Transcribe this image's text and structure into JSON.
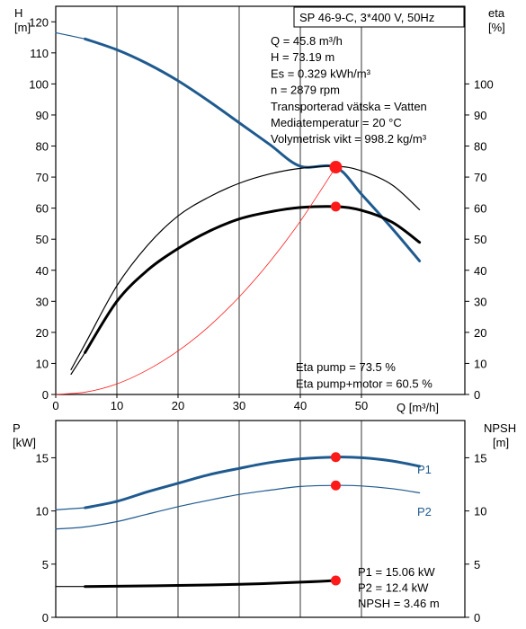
{
  "header": {
    "model_label": "SP 46-9-C, 3*400 V, 50Hz"
  },
  "info_lines": [
    "Q = 45.8 m³/h",
    "H = 73.19 m",
    "Es = 0.329 kWh/m³",
    "n = 2879 rpm",
    "Transporterad vätska = Vatten",
    "Mediatemperatur = 20 °C",
    "Volymetrisk vikt = 998.2 kg/m³"
  ],
  "eta_lines": [
    "Eta pump = 73.5 %",
    "Eta pump+motor = 60.5 %"
  ],
  "power_lines": [
    "P1 = 15.06 kW",
    "P2 = 12.4 kW",
    "NPSH = 3.46 m"
  ],
  "colors": {
    "accent_blue": "#1f5a8f",
    "red": "#ff1a1a",
    "black": "#000000"
  },
  "chart_data": [
    {
      "id": "top",
      "type": "line",
      "title": "",
      "xlabel": "Q [m³/h]",
      "ylabel_left": [
        "H",
        "[m]"
      ],
      "ylabel_right": [
        "eta",
        "[%]"
      ],
      "xlim": [
        0,
        60
      ],
      "xticks": [
        0,
        10,
        20,
        30,
        40,
        50
      ],
      "ylim_left": [
        0,
        125
      ],
      "yticks_left": [
        0,
        10,
        20,
        30,
        40,
        50,
        60,
        70,
        80,
        90,
        100,
        110,
        120
      ],
      "ylim_right": [
        0,
        125
      ],
      "yticks_right": [
        0,
        10,
        20,
        30,
        40,
        50,
        60,
        70,
        80,
        90,
        100
      ],
      "grid": "vertical",
      "series": [
        {
          "key": "H",
          "style": "blue-thick",
          "x": [
            4.8,
            10,
            15,
            20,
            25,
            30,
            35,
            40,
            45.8,
            50,
            55,
            59.5
          ],
          "y": [
            114.5,
            111,
            106.5,
            101,
            94.5,
            87.5,
            80.5,
            73.5,
            73.19,
            64.5,
            53.5,
            43
          ]
        },
        {
          "key": "H_ext",
          "style": "blue-thin",
          "x": [
            0,
            4.8
          ],
          "y": [
            116.5,
            114.5
          ]
        },
        {
          "key": "eta_pump",
          "style": "black-thin",
          "x": [
            2.5,
            5,
            10,
            15,
            20,
            25,
            30,
            35,
            40,
            45.8,
            50,
            55,
            59.5
          ],
          "y": [
            8,
            17,
            35,
            48,
            57.5,
            63.5,
            68,
            71,
            72.8,
            73.5,
            72,
            67.5,
            59.5
          ]
        },
        {
          "key": "eta_pump_motor",
          "style": "black-thick",
          "x": [
            4.8,
            10,
            15,
            20,
            25,
            30,
            35,
            40,
            45.8,
            50,
            55,
            59.5
          ],
          "y": [
            13.5,
            30,
            40,
            47,
            52.5,
            56.5,
            58.8,
            60.2,
            60.5,
            59.3,
            55.5,
            49
          ]
        },
        {
          "key": "eta_ext",
          "style": "black-thin",
          "x": [
            2.5,
            4.8
          ],
          "y": [
            6.5,
            13.5
          ]
        },
        {
          "key": "system_curve",
          "style": "red-thin",
          "x": [
            0,
            5,
            10,
            15,
            20,
            25,
            30,
            35,
            40,
            45.8
          ],
          "y": [
            0,
            0.8,
            3.4,
            7.9,
            14,
            21.8,
            31.4,
            42.7,
            55.8,
            73.19
          ]
        }
      ],
      "markers": [
        {
          "x": 45.8,
          "y": 73.19,
          "size": "large"
        },
        {
          "x": 45.8,
          "y": 60.5,
          "size": "small"
        }
      ]
    },
    {
      "id": "bottom",
      "type": "line",
      "title": "",
      "xlabel": "",
      "ylabel_left": [
        "P",
        "[kW]"
      ],
      "ylabel_right": [
        "NPSH",
        "[m]"
      ],
      "xlim": [
        0,
        60
      ],
      "ylim_left": [
        0,
        18.5
      ],
      "yticks_left": [
        0,
        5,
        10,
        15
      ],
      "ylim_right": [
        0,
        18.5
      ],
      "yticks_right": [
        0,
        5,
        10,
        15
      ],
      "grid": "vertical",
      "series": [
        {
          "key": "P1",
          "name": "P1",
          "style": "blue-thick",
          "x": [
            4.8,
            10,
            15,
            20,
            25,
            30,
            35,
            40,
            45.8,
            50,
            55,
            59.5
          ],
          "y": [
            10.3,
            10.9,
            11.8,
            12.6,
            13.4,
            14.0,
            14.55,
            14.9,
            15.06,
            15.0,
            14.7,
            14.2
          ]
        },
        {
          "key": "P1_ext",
          "style": "blue-thin",
          "x": [
            0,
            4.8
          ],
          "y": [
            10.1,
            10.3
          ]
        },
        {
          "key": "P2",
          "name": "P2",
          "style": "blue-thin",
          "x": [
            0,
            4.8,
            10,
            15,
            20,
            25,
            30,
            35,
            40,
            45.8,
            50,
            55,
            59.5
          ],
          "y": [
            8.3,
            8.5,
            9.0,
            9.7,
            10.4,
            11.0,
            11.55,
            11.95,
            12.3,
            12.4,
            12.35,
            12.1,
            11.7
          ]
        },
        {
          "key": "NPSH",
          "style": "black-thick",
          "x": [
            4.8,
            10,
            20,
            30,
            40,
            45.8
          ],
          "y": [
            2.9,
            2.92,
            3.0,
            3.1,
            3.3,
            3.46
          ]
        },
        {
          "key": "NPSH_ext",
          "style": "black-thin",
          "x": [
            0,
            4.8
          ],
          "y": [
            2.9,
            2.9
          ]
        }
      ],
      "markers": [
        {
          "x": 45.8,
          "y": 15.06,
          "size": "small"
        },
        {
          "x": 45.8,
          "y": 12.4,
          "size": "small"
        },
        {
          "x": 45.8,
          "y": 3.46,
          "size": "small"
        }
      ]
    }
  ]
}
